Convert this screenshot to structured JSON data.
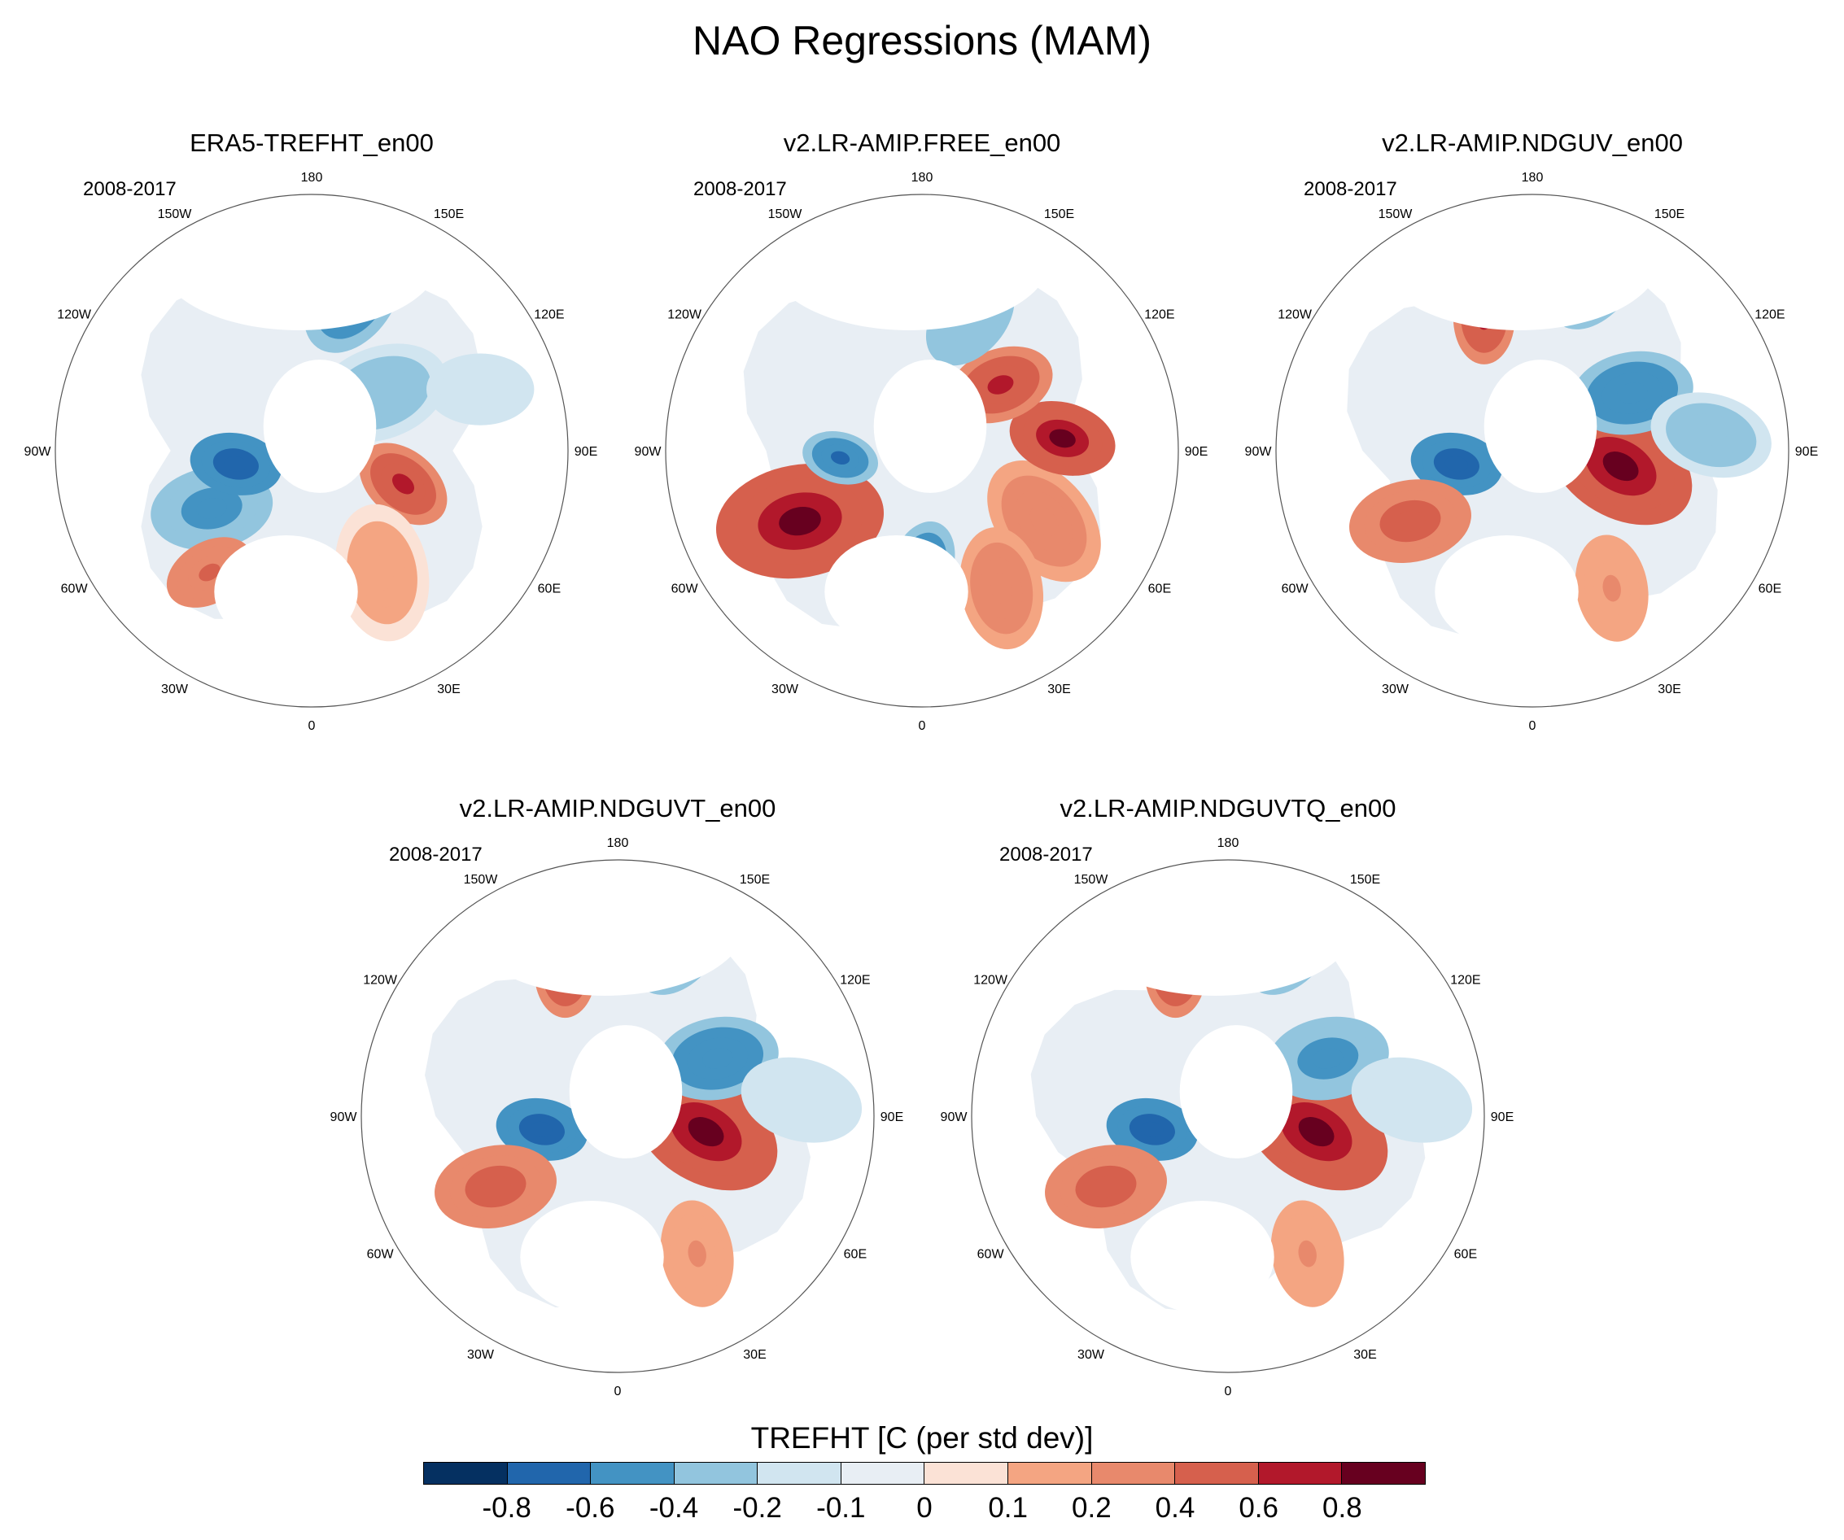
{
  "title": "NAO Regressions (MAM)",
  "period": "2008-2017",
  "longitude_labels": [
    "180",
    "150E",
    "120E",
    "90E",
    "60E",
    "30E",
    "0",
    "30W",
    "60W",
    "90W",
    "120W",
    "150W"
  ],
  "panels": [
    {
      "title": "ERA5-TREFHT_en00",
      "period": "2008-2017"
    },
    {
      "title": "v2.LR-AMIP.FREE_en00",
      "period": "2008-2017"
    },
    {
      "title": "v2.LR-AMIP.NDGUV_en00",
      "period": "2008-2017"
    },
    {
      "title": "v2.LR-AMIP.NDGUVT_en00",
      "period": "2008-2017"
    },
    {
      "title": "v2.LR-AMIP.NDGUVTQ_en00",
      "period": "2008-2017"
    }
  ],
  "colorbar": {
    "title": "TREFHT [C (per std dev)]",
    "levels": [
      "-0.8",
      "-0.6",
      "-0.4",
      "-0.2",
      "-0.1",
      "0",
      "0.1",
      "0.2",
      "0.4",
      "0.6",
      "0.8"
    ],
    "colors": [
      "#053061",
      "#2166ac",
      "#4393c3",
      "#92c5de",
      "#d1e5f0",
      "#e8eef4",
      "#fbe2d6",
      "#f4a582",
      "#e8896c",
      "#d6604d",
      "#b2182b",
      "#67001f"
    ]
  }
}
